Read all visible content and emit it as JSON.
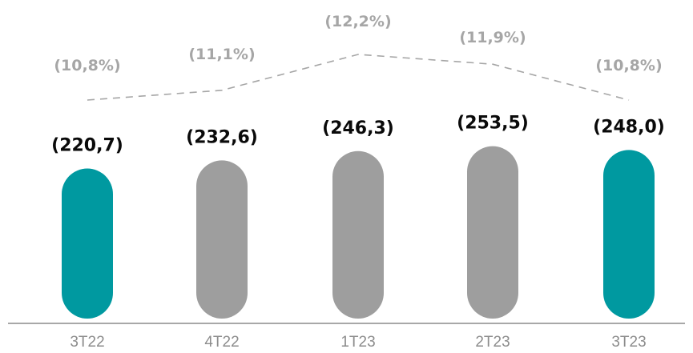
{
  "chart_data": {
    "type": "bar",
    "categories": [
      "3T22",
      "4T22",
      "1T23",
      "2T23",
      "3T23"
    ],
    "values": [
      -220.7,
      -232.6,
      -246.3,
      -253.5,
      -248.0
    ],
    "value_labels": [
      "(220,7)",
      "(232,6)",
      "(246,3)",
      "(253,5)",
      "(248,0)"
    ],
    "bar_colors": [
      "#0099a0",
      "#9e9e9e",
      "#9e9e9e",
      "#9e9e9e",
      "#0099a0"
    ],
    "series": [
      {
        "type": "line",
        "values": [
          -10.8,
          -11.1,
          -12.2,
          -11.9,
          -10.8
        ],
        "labels": [
          "(10,8%)",
          "(11,1%)",
          "(12,2%)",
          "(11,9%)",
          "(10,8%)"
        ],
        "color": "#a6a6a6",
        "line_style": "dashed"
      }
    ],
    "colors": {
      "label": "#0a0a0a",
      "pct_label": "#a6a6a6",
      "axis": "#8c8c8c"
    },
    "title": "",
    "xlabel": "",
    "ylabel": "",
    "grid": false,
    "legend": "none"
  }
}
